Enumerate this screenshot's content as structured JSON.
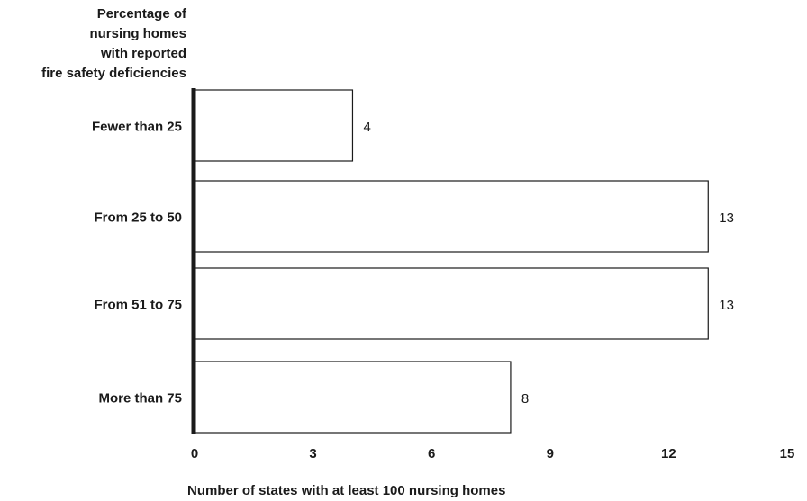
{
  "chart_data": {
    "type": "bar",
    "orientation": "horizontal",
    "ylabel_lines": [
      "Percentage of",
      "nursing homes",
      "with reported",
      "fire safety deficiencies"
    ],
    "xlabel": "Number of states with at least 100 nursing homes",
    "categories": [
      "Fewer than 25",
      "From 25 to 50",
      "From 51 to 75",
      "More than 75"
    ],
    "values": [
      4,
      13,
      13,
      8
    ],
    "xlim": [
      0,
      15
    ],
    "xticks": [
      0,
      3,
      6,
      9,
      12,
      15
    ],
    "grid": false,
    "legend": "none"
  }
}
